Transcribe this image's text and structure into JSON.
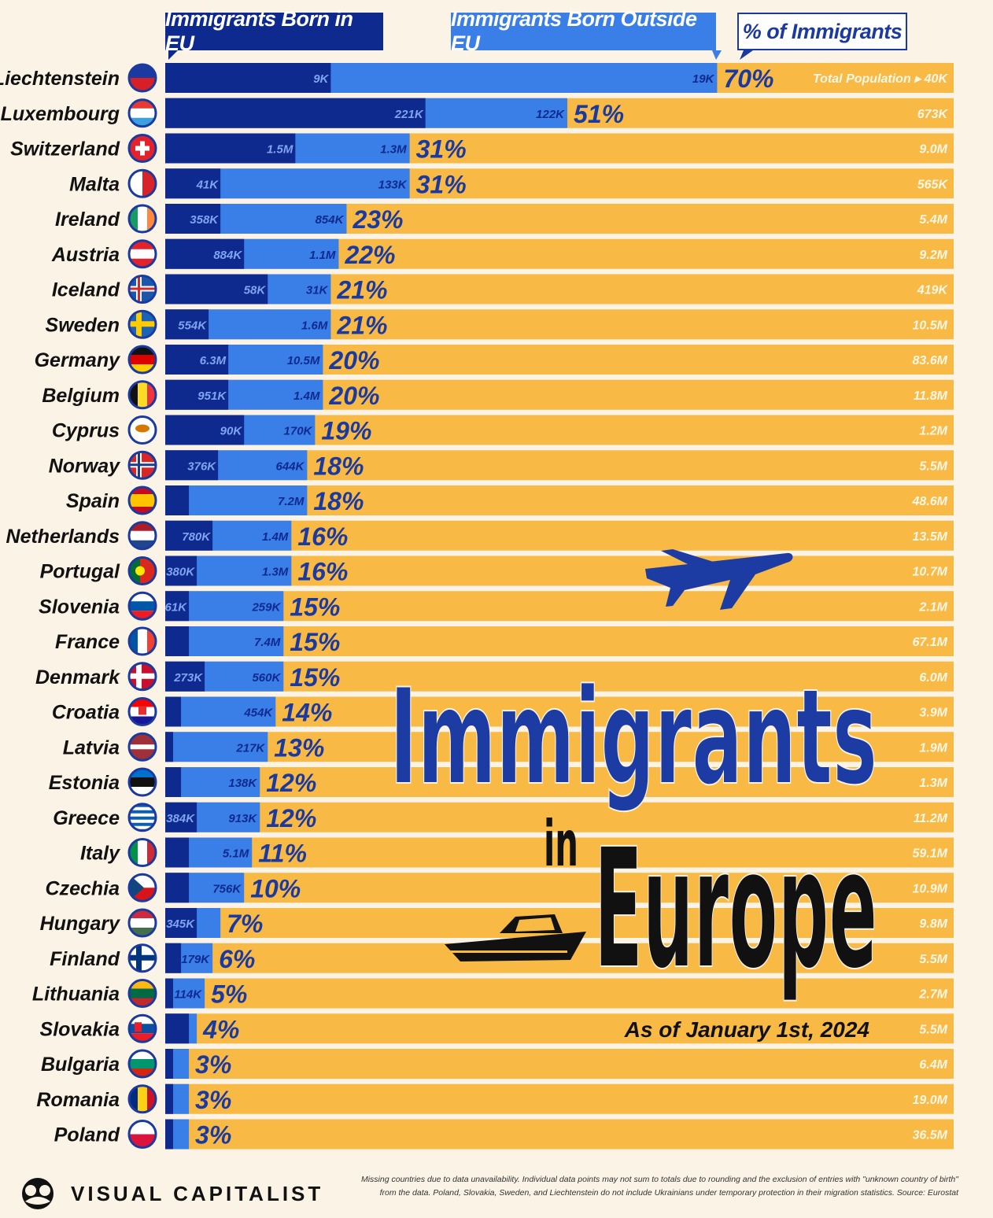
{
  "legend": {
    "eu_label": "Immigrants Born in EU",
    "outside_label": "Immigrants Born Outside EU",
    "pct_label": "% of Immigrants",
    "total_pop_label": "Total Population ▸"
  },
  "title": {
    "line1": "Immigrants",
    "word_in": "in",
    "line2": "Europe",
    "date": "As of January 1st, 2024"
  },
  "colors": {
    "eu": "#0f2a8f",
    "outside": "#3a7ee8",
    "population": "#f8b945",
    "title_blue": "#1d3ca3",
    "background": "#faf3e6"
  },
  "footer": {
    "brand": "VISUAL CAPITALIST",
    "note_line1": "Missing countries due to data unavailability. Individual data points may not sum to totals due to rounding and the exclusion of entries with \"unknown country of birth\"",
    "note_line2": "from the data. Poland, Slovakia, Sweden, and Liechtenstein do not include Ukrainians under temporary protection in their migration statistics. Source: Eurostat"
  },
  "chart_data": {
    "type": "bar",
    "orientation": "horizontal-stacked",
    "title": "Immigrants in Europe",
    "subtitle": "As of January 1st, 2024",
    "series": [
      {
        "name": "Immigrants Born in EU"
      },
      {
        "name": "Immigrants Born Outside EU"
      }
    ],
    "rows": [
      {
        "country": "Liechtenstein",
        "flag": "liechtenstein-flag-icon",
        "eu_share": 21,
        "pct": 70,
        "eu_label": "9K",
        "outside_label": "19K",
        "pct_label": "70%",
        "total_label": "40K"
      },
      {
        "country": "Luxembourg",
        "flag": "luxembourg-flag-icon",
        "eu_share": 33,
        "pct": 51,
        "eu_label": "221K",
        "outside_label": "122K",
        "pct_label": "51%",
        "total_label": "673K"
      },
      {
        "country": "Switzerland",
        "flag": "switzerland-flag-icon",
        "eu_share": 16.5,
        "pct": 31,
        "eu_label": "1.5M",
        "outside_label": "1.3M",
        "pct_label": "31%",
        "total_label": "9.0M"
      },
      {
        "country": "Malta",
        "flag": "malta-flag-icon",
        "eu_share": 7,
        "pct": 31,
        "eu_label": "41K",
        "outside_label": "133K",
        "pct_label": "31%",
        "total_label": "565K"
      },
      {
        "country": "Ireland",
        "flag": "ireland-flag-icon",
        "eu_share": 7,
        "pct": 23,
        "eu_label": "358K",
        "outside_label": "854K",
        "pct_label": "23%",
        "total_label": "5.4M"
      },
      {
        "country": "Austria",
        "flag": "austria-flag-icon",
        "eu_share": 10,
        "pct": 22,
        "eu_label": "884K",
        "outside_label": "1.1M",
        "pct_label": "22%",
        "total_label": "9.2M"
      },
      {
        "country": "Iceland",
        "flag": "iceland-flag-icon",
        "eu_share": 13,
        "pct": 21,
        "eu_label": "58K",
        "outside_label": "31K",
        "pct_label": "21%",
        "total_label": "419K"
      },
      {
        "country": "Sweden",
        "flag": "sweden-flag-icon",
        "eu_share": 5.5,
        "pct": 21,
        "eu_label": "554K",
        "outside_label": "1.6M",
        "pct_label": "21%",
        "total_label": "10.5M"
      },
      {
        "country": "Germany",
        "flag": "germany-flag-icon",
        "eu_share": 8,
        "pct": 20,
        "eu_label": "6.3M",
        "outside_label": "10.5M",
        "pct_label": "20%",
        "total_label": "83.6M"
      },
      {
        "country": "Belgium",
        "flag": "belgium-flag-icon",
        "eu_share": 8,
        "pct": 20,
        "eu_label": "951K",
        "outside_label": "1.4M",
        "pct_label": "20%",
        "total_label": "11.8M"
      },
      {
        "country": "Cyprus",
        "flag": "cyprus-flag-icon",
        "eu_share": 10,
        "pct": 19,
        "eu_label": "90K",
        "outside_label": "170K",
        "pct_label": "19%",
        "total_label": "1.2M"
      },
      {
        "country": "Norway",
        "flag": "norway-flag-icon",
        "eu_share": 6.7,
        "pct": 18,
        "eu_label": "376K",
        "outside_label": "644K",
        "pct_label": "18%",
        "total_label": "5.5M"
      },
      {
        "country": "Spain",
        "flag": "spain-flag-icon",
        "eu_share": 3,
        "pct": 18,
        "eu_label": "",
        "outside_label": "7.2M",
        "pct_label": "18%",
        "total_label": "48.6M"
      },
      {
        "country": "Netherlands",
        "flag": "netherlands-flag-icon",
        "eu_share": 6,
        "pct": 16,
        "eu_label": "780K",
        "outside_label": "1.4M",
        "pct_label": "16%",
        "total_label": "13.5M"
      },
      {
        "country": "Portugal",
        "flag": "portugal-flag-icon",
        "eu_share": 4,
        "pct": 16,
        "eu_label": "380K",
        "outside_label": "1.3M",
        "pct_label": "16%",
        "total_label": "10.7M"
      },
      {
        "country": "Slovenia",
        "flag": "slovenia-flag-icon",
        "eu_share": 3,
        "pct": 15,
        "eu_label": "61K",
        "outside_label": "259K",
        "pct_label": "15%",
        "total_label": "2.1M"
      },
      {
        "country": "France",
        "flag": "france-flag-icon",
        "eu_share": 3,
        "pct": 15,
        "eu_label": "",
        "outside_label": "7.4M",
        "pct_label": "15%",
        "total_label": "67.1M"
      },
      {
        "country": "Denmark",
        "flag": "denmark-flag-icon",
        "eu_share": 5,
        "pct": 15,
        "eu_label": "273K",
        "outside_label": "560K",
        "pct_label": "15%",
        "total_label": "6.0M"
      },
      {
        "country": "Croatia",
        "flag": "croatia-flag-icon",
        "eu_share": 2,
        "pct": 14,
        "eu_label": "",
        "outside_label": "454K",
        "pct_label": "14%",
        "total_label": "3.9M"
      },
      {
        "country": "Latvia",
        "flag": "latvia-flag-icon",
        "eu_share": 1,
        "pct": 13,
        "eu_label": "",
        "outside_label": "217K",
        "pct_label": "13%",
        "total_label": "1.9M"
      },
      {
        "country": "Estonia",
        "flag": "estonia-flag-icon",
        "eu_share": 2,
        "pct": 12,
        "eu_label": "",
        "outside_label": "138K",
        "pct_label": "12%",
        "total_label": "1.3M"
      },
      {
        "country": "Greece",
        "flag": "greece-flag-icon",
        "eu_share": 4,
        "pct": 12,
        "eu_label": "384K",
        "outside_label": "913K",
        "pct_label": "12%",
        "total_label": "11.2M"
      },
      {
        "country": "Italy",
        "flag": "italy-flag-icon",
        "eu_share": 3,
        "pct": 11,
        "eu_label": "",
        "outside_label": "5.1M",
        "pct_label": "11%",
        "total_label": "59.1M"
      },
      {
        "country": "Czechia",
        "flag": "czechia-flag-icon",
        "eu_share": 3,
        "pct": 10,
        "eu_label": "",
        "outside_label": "756K",
        "pct_label": "10%",
        "total_label": "10.9M"
      },
      {
        "country": "Hungary",
        "flag": "hungary-flag-icon",
        "eu_share": 4,
        "pct": 7,
        "eu_label": "345K",
        "outside_label": "",
        "pct_label": "7%",
        "total_label": "9.8M"
      },
      {
        "country": "Finland",
        "flag": "finland-flag-icon",
        "eu_share": 2,
        "pct": 6,
        "eu_label": "",
        "outside_label": "179K",
        "pct_label": "6%",
        "total_label": "5.5M"
      },
      {
        "country": "Lithuania",
        "flag": "lithuania-flag-icon",
        "eu_share": 1,
        "pct": 5,
        "eu_label": "",
        "outside_label": "114K",
        "pct_label": "5%",
        "total_label": "2.7M"
      },
      {
        "country": "Slovakia",
        "flag": "slovakia-flag-icon",
        "eu_share": 3,
        "pct": 4,
        "eu_label": "",
        "outside_label": "",
        "pct_label": "4%",
        "total_label": "5.5M"
      },
      {
        "country": "Bulgaria",
        "flag": "bulgaria-flag-icon",
        "eu_share": 1,
        "pct": 3,
        "eu_label": "",
        "outside_label": "",
        "pct_label": "3%",
        "total_label": "6.4M"
      },
      {
        "country": "Romania",
        "flag": "romania-flag-icon",
        "eu_share": 1,
        "pct": 3,
        "eu_label": "",
        "outside_label": "",
        "pct_label": "3%",
        "total_label": "19.0M"
      },
      {
        "country": "Poland",
        "flag": "poland-flag-icon",
        "eu_share": 1,
        "pct": 3,
        "eu_label": "",
        "outside_label": "",
        "pct_label": "3%",
        "total_label": "36.5M"
      }
    ]
  }
}
